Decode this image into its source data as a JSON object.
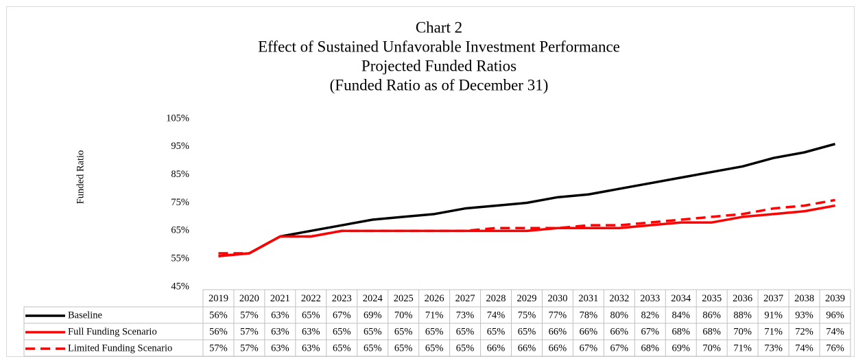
{
  "chart_data": {
    "type": "line",
    "title": [
      "Chart 2",
      "Effect of Sustained Unfavorable Investment Performance",
      "Projected Funded Ratios",
      "(Funded Ratio as of December 31)"
    ],
    "y_label": "Funded Ratio",
    "categories": [
      "2019",
      "2020",
      "2021",
      "2022",
      "2023",
      "2024",
      "2025",
      "2026",
      "2027",
      "2028",
      "2029",
      "2030",
      "2031",
      "2032",
      "2033",
      "2034",
      "2035",
      "2036",
      "2037",
      "2038",
      "2039"
    ],
    "series": [
      {
        "name": "Baseline",
        "color": "#000000",
        "line_style": "solid",
        "values": [
          56,
          57,
          63,
          65,
          67,
          69,
          70,
          71,
          73,
          74,
          75,
          77,
          78,
          80,
          82,
          84,
          86,
          88,
          91,
          93,
          96
        ],
        "value_labels": [
          "56%",
          "57%",
          "63%",
          "65%",
          "67%",
          "69%",
          "70%",
          "71%",
          "73%",
          "74%",
          "75%",
          "77%",
          "78%",
          "80%",
          "82%",
          "84%",
          "86%",
          "88%",
          "91%",
          "93%",
          "96%"
        ]
      },
      {
        "name": "Full Funding Scenario",
        "color": "#ff0000",
        "line_style": "solid",
        "values": [
          56,
          57,
          63,
          63,
          65,
          65,
          65,
          65,
          65,
          65,
          65,
          66,
          66,
          66,
          67,
          68,
          68,
          70,
          71,
          72,
          74
        ],
        "value_labels": [
          "56%",
          "57%",
          "63%",
          "63%",
          "65%",
          "65%",
          "65%",
          "65%",
          "65%",
          "65%",
          "65%",
          "66%",
          "66%",
          "66%",
          "67%",
          "68%",
          "68%",
          "70%",
          "71%",
          "72%",
          "74%"
        ]
      },
      {
        "name": "Limited Funding Scenario",
        "color": "#ff0000",
        "line_style": "dashed",
        "values": [
          57,
          57,
          63,
          63,
          65,
          65,
          65,
          65,
          65,
          66,
          66,
          66,
          67,
          67,
          68,
          69,
          70,
          71,
          73,
          74,
          76
        ],
        "value_labels": [
          "57%",
          "57%",
          "63%",
          "63%",
          "65%",
          "65%",
          "65%",
          "65%",
          "65%",
          "66%",
          "66%",
          "66%",
          "67%",
          "67%",
          "68%",
          "69%",
          "70%",
          "71%",
          "73%",
          "74%",
          "76%"
        ]
      }
    ],
    "ylim": [
      45,
      105
    ],
    "yticks": [
      {
        "value": 45,
        "label": "45%"
      },
      {
        "value": 55,
        "label": "55%"
      },
      {
        "value": 65,
        "label": "65%"
      },
      {
        "value": 75,
        "label": "75%"
      },
      {
        "value": 85,
        "label": "85%"
      },
      {
        "value": 95,
        "label": "95%"
      },
      {
        "value": 105,
        "label": "105%"
      }
    ],
    "grid": false
  }
}
